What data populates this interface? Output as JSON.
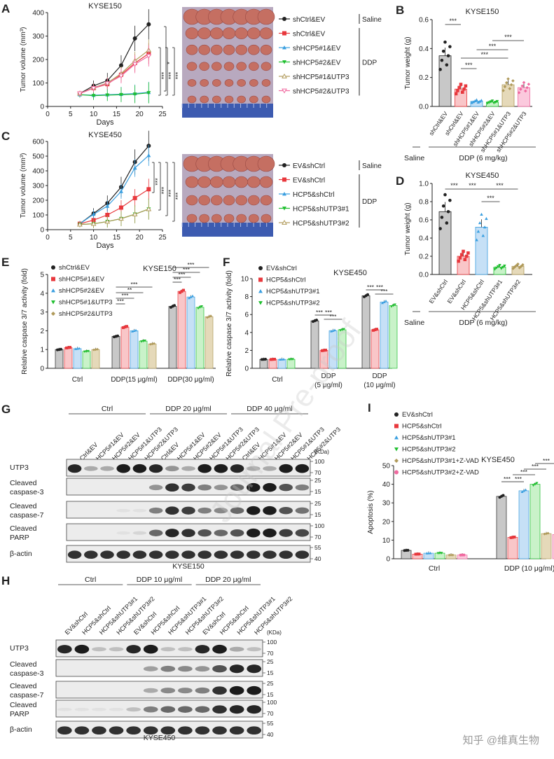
{
  "panels": {
    "A": {
      "label": "A",
      "title": "KYSE150",
      "ylabel": "Tumor volume (mm³)",
      "xlabel": "Days",
      "yticks": [
        "0",
        "100",
        "200",
        "300",
        "400"
      ],
      "xticks": [
        "0",
        "5",
        "10",
        "15",
        "20",
        "25"
      ],
      "legend": [
        "shCtrl&EV",
        "shCtrl&EV",
        "shHCP5#1&EV",
        "shHCP5#2&EV",
        "shHCP5#1&UTP3",
        "shHCP5#2&UTP3"
      ],
      "group_saline": "Saline",
      "group_ddp": "DDP",
      "sig": [
        "*",
        "***",
        "***",
        "***"
      ]
    },
    "B": {
      "label": "B",
      "title": "KYSE150",
      "ylabel": "Tumor weight (g)",
      "yticks": [
        "0.0",
        "0.2",
        "0.4",
        "0.6"
      ],
      "categories": [
        "shCtrl&EV",
        "shCtrl&EV",
        "shHCP5#1&EV",
        "shHCP5#2&EV",
        "shHCP5#1&UTP3",
        "shHCP5#2&UTP3"
      ],
      "saline": "Saline",
      "ddp": "DDP (6 mg/kg)",
      "sig": "***"
    },
    "C": {
      "label": "C",
      "title": "KYSE450",
      "ylabel": "Tumor volume (mm³)",
      "xlabel": "Days",
      "yticks": [
        "0",
        "100",
        "200",
        "300",
        "400",
        "500",
        "600"
      ],
      "xticks": [
        "0",
        "5",
        "10",
        "15",
        "20",
        "25"
      ],
      "legend": [
        "EV&shCtrl",
        "EV&shCtrl",
        "HCP5&shCtrl",
        "HCP5&shUTP3#1",
        "HCP5&shUTP3#2"
      ],
      "group_saline": "Saline",
      "group_ddp": "DDP",
      "sig": "***"
    },
    "D": {
      "label": "D",
      "title": "KYSE450",
      "ylabel": "Tumor weight (g)",
      "yticks": [
        "0.0",
        "0.2",
        "0.4",
        "0.6",
        "0.8",
        "1.0"
      ],
      "categories": [
        "EV&shCtrl",
        "EV&shCtrl",
        "HCP5&shCtrl",
        "HCP5&shUTP3#1",
        "HCP5&shUTP3#2"
      ],
      "saline": "Saline",
      "ddp": "DDP (6 mg/kg)",
      "sig": "***"
    },
    "E": {
      "label": "E",
      "title": "KYSE150",
      "ylabel": "Relative caspase 3/7 activity (fold)",
      "yticks": [
        "0",
        "1",
        "2",
        "3",
        "4",
        "5"
      ],
      "legend": [
        "shCtrl&EV",
        "shHCP5#1&EV",
        "shHCP5#2&EV",
        "shHCP5#1&UTP3",
        "shHCP5#2&UTP3"
      ],
      "groups": [
        "Ctrl",
        "DDP(15 μg/ml)",
        "DDP(30 μg/ml)"
      ],
      "sig": "***",
      "sig_ns": "**"
    },
    "F": {
      "label": "F",
      "title": "KYSE450",
      "ylabel": "Relative caspase 3/7 activity (fold)",
      "yticks": [
        "0",
        "2",
        "4",
        "6",
        "8",
        "10"
      ],
      "legend": [
        "EV&shCtrl",
        "HCP5&shCtrl",
        "HCP5&shUTP3#1",
        "HCP5&shUTP3#2"
      ],
      "groups": [
        "Ctrl",
        "DDP",
        "(5 μg/ml)",
        "DDP",
        "(10 μg/ml)"
      ],
      "sig": "***"
    },
    "G": {
      "label": "G",
      "cell": "KYSE150",
      "treatments": [
        "Ctrl",
        "DDP 20 μg/ml",
        "DDP 40 μg/ml"
      ],
      "lanes": [
        "shCtrl&EV",
        "shHCP5#1&EV",
        "shHCP5#2&EV",
        "shHCP5#1&UTP3",
        "shHCP5#2&UTP3",
        "shCtrl&EV",
        "shHCP5#1&EV",
        "shHCP5#2&EV",
        "shHCP5#1&UTP3",
        "shHCP5#2&UTP3",
        "shCtrl&EV",
        "shHCP5#1&EV",
        "shHCP5#2&EV",
        "shHCP5#1&UTP3",
        "shHCP5#2&UTP3"
      ],
      "rows": [
        "UTP3",
        "Cleaved caspase-3",
        "Cleaved caspase-7",
        "Cleaved PARP",
        "β-actin"
      ],
      "kda": "(KDa)",
      "markers": [
        [
          "100",
          "70"
        ],
        [
          "25",
          "15"
        ],
        [
          "25",
          "15"
        ],
        [
          "100",
          "70"
        ],
        [
          "55",
          "40"
        ]
      ]
    },
    "H": {
      "label": "H",
      "cell": "KYSE450",
      "treatments": [
        "Ctrl",
        "DDP 10 μg/ml",
        "DDP 20 μg/ml"
      ],
      "lanes": [
        "EV&shCtrl",
        "HCP5&shCtrl",
        "HCP5&shUTP3#1",
        "HCP5&shUTP3#2",
        "EV&shCtrl",
        "HCP5&shCtrl",
        "HCP5&shUTP3#1",
        "HCP5&shUTP3#2",
        "EV&shCtrl",
        "HCP5&shCtrl",
        "HCP5&shUTP3#1",
        "HCP5&shUTP3#2"
      ],
      "rows": [
        "UTP3",
        "Cleaved caspase-3",
        "Cleaved caspase-7",
        "Cleaved PARP",
        "β-actin"
      ],
      "kda": "(KDa)",
      "markers": [
        [
          "100",
          "70"
        ],
        [
          "25",
          "15"
        ],
        [
          "25",
          "15"
        ],
        [
          "100",
          "70"
        ],
        [
          "55",
          "40"
        ]
      ]
    },
    "I": {
      "label": "I",
      "title": "KYSE450",
      "ylabel": "Apoptosis (%)",
      "yticks": [
        "0",
        "10",
        "20",
        "30",
        "40",
        "50"
      ],
      "legend": [
        "EV&shCtrl",
        "HCP5&shCtrl",
        "HCP5&shUTP3#1",
        "HCP5&shUTP3#2",
        "HCP5&shUTP3#1+Z-VAD",
        "HCP5&shUTP3#2+Z-VAD"
      ],
      "groups": [
        "Ctrl",
        "DDP (10 μg/ml)"
      ],
      "sig": "***"
    }
  },
  "colors": {
    "black": "#222222",
    "red": "#e8383d",
    "blue": "#3a9fe0",
    "green": "#1fbf2f",
    "olive": "#b09a5a",
    "pink": "#f06aa0",
    "bar_gray": "#c8c8c8",
    "bar_red": "#f9c6c8",
    "bar_blue": "#c6e0f6",
    "bar_green": "#c9f2c9",
    "bar_olive": "#e5d9b9",
    "bar_pink": "#fbc9dd"
  },
  "watermark": "Journal Pre-proof",
  "footer_credit": "知乎 @维真生物",
  "chart_data": [
    {
      "type": "line",
      "title": "KYSE150",
      "xlabel": "Days",
      "ylabel": "Tumor volume (mm³)",
      "xlim": [
        0,
        25
      ],
      "ylim": [
        0,
        400
      ],
      "x": [
        7,
        10,
        13,
        16,
        19,
        22
      ],
      "series": [
        {
          "name": "shCtrl&EV",
          "values": [
            55,
            88,
            110,
            175,
            290,
            350
          ]
        },
        {
          "name": "shCtrl&EV",
          "values": [
            55,
            78,
            95,
            135,
            185,
            225
          ]
        },
        {
          "name": "shHCP5#1&EV",
          "values": [
            50,
            48,
            50,
            52,
            55,
            60
          ]
        },
        {
          "name": "shHCP5#2&EV",
          "values": [
            50,
            46,
            48,
            50,
            52,
            58
          ]
        },
        {
          "name": "shHCP5#1&UTP3",
          "values": [
            55,
            80,
            100,
            140,
            195,
            240
          ]
        },
        {
          "name": "shHCP5#2&UTP3",
          "values": [
            55,
            78,
            98,
            130,
            180,
            215
          ]
        }
      ]
    },
    {
      "type": "bar",
      "title": "KYSE150",
      "ylabel": "Tumor weight (g)",
      "ylim": [
        0,
        0.6
      ],
      "categories": [
        "shCtrl&EV",
        "shCtrl&EV",
        "shHCP5#1&EV",
        "shHCP5#2&EV",
        "shHCP5#1&UTP3",
        "shHCP5#2&UTP3"
      ],
      "values": [
        0.35,
        0.12,
        0.035,
        0.03,
        0.15,
        0.13
      ]
    },
    {
      "type": "line",
      "title": "KYSE450",
      "xlabel": "Days",
      "ylabel": "Tumor volume (mm³)",
      "xlim": [
        0,
        25
      ],
      "ylim": [
        0,
        600
      ],
      "x": [
        7,
        10,
        13,
        16,
        19,
        22
      ],
      "series": [
        {
          "name": "EV&shCtrl",
          "values": [
            40,
            110,
            180,
            290,
            460,
            570
          ]
        },
        {
          "name": "EV&shCtrl",
          "values": [
            40,
            65,
            100,
            150,
            215,
            275
          ]
        },
        {
          "name": "HCP5&shCtrl",
          "values": [
            40,
            105,
            160,
            260,
            420,
            505
          ]
        },
        {
          "name": "HCP5&shUTP3#1",
          "values": [
            35,
            40,
            55,
            75,
            105,
            140
          ]
        },
        {
          "name": "HCP5&shUTP3#2",
          "values": [
            35,
            40,
            55,
            75,
            105,
            140
          ]
        }
      ]
    },
    {
      "type": "bar",
      "title": "KYSE450",
      "ylabel": "Tumor weight (g)",
      "ylim": [
        0,
        1.0
      ],
      "categories": [
        "EV&shCtrl",
        "EV&shCtrl",
        "HCP5&shCtrl",
        "HCP5&shUTP3#1",
        "HCP5&shUTP3#2"
      ],
      "values": [
        0.69,
        0.2,
        0.52,
        0.08,
        0.09
      ]
    },
    {
      "type": "bar",
      "title": "KYSE150",
      "ylabel": "Relative caspase 3/7 activity (fold)",
      "ylim": [
        0,
        5
      ],
      "categories": [
        "Ctrl",
        "DDP(15 μg/ml)",
        "DDP(30 μg/ml)"
      ],
      "series": [
        {
          "name": "shCtrl&EV",
          "values": [
            1.0,
            1.7,
            3.3
          ]
        },
        {
          "name": "shHCP5#1&EV",
          "values": [
            1.1,
            2.2,
            4.1
          ]
        },
        {
          "name": "shHCP5#2&EV",
          "values": [
            1.05,
            2.0,
            3.8
          ]
        },
        {
          "name": "shHCP5#1&UTP3",
          "values": [
            0.9,
            1.45,
            3.25
          ]
        },
        {
          "name": "shHCP5#2&UTP3",
          "values": [
            1.0,
            1.3,
            2.75
          ]
        }
      ]
    },
    {
      "type": "bar",
      "title": "KYSE450",
      "ylabel": "Relative caspase 3/7 activity (fold)",
      "ylim": [
        0,
        10
      ],
      "categories": [
        "Ctrl",
        "DDP (5 μg/ml)",
        "DDP (10 μg/ml)"
      ],
      "series": [
        {
          "name": "EV&shCtrl",
          "values": [
            1.0,
            5.3,
            8.1
          ]
        },
        {
          "name": "HCP5&shCtrl",
          "values": [
            1.0,
            2.0,
            4.3
          ]
        },
        {
          "name": "HCP5&shUTP3#1",
          "values": [
            1.0,
            4.2,
            7.4
          ]
        },
        {
          "name": "HCP5&shUTP3#2",
          "values": [
            1.0,
            4.3,
            7.0
          ]
        }
      ]
    },
    {
      "type": "bar",
      "title": "KYSE450",
      "ylabel": "Apoptosis (%)",
      "ylim": [
        0,
        50
      ],
      "categories": [
        "Ctrl",
        "DDP (10 μg/ml)"
      ],
      "series": [
        {
          "name": "EV&shCtrl",
          "values": [
            4.5,
            33.5
          ]
        },
        {
          "name": "HCP5&shCtrl",
          "values": [
            2.5,
            11.5
          ]
        },
        {
          "name": "HCP5&shUTP3#1",
          "values": [
            3.0,
            36.5
          ]
        },
        {
          "name": "HCP5&shUTP3#2",
          "values": [
            3.0,
            40.0
          ]
        },
        {
          "name": "HCP5&shUTP3#1+Z-VAD",
          "values": [
            2.0,
            13.5
          ]
        },
        {
          "name": "HCP5&shUTP3#2+Z-VAD",
          "values": [
            2.0,
            13.0
          ]
        }
      ]
    }
  ]
}
